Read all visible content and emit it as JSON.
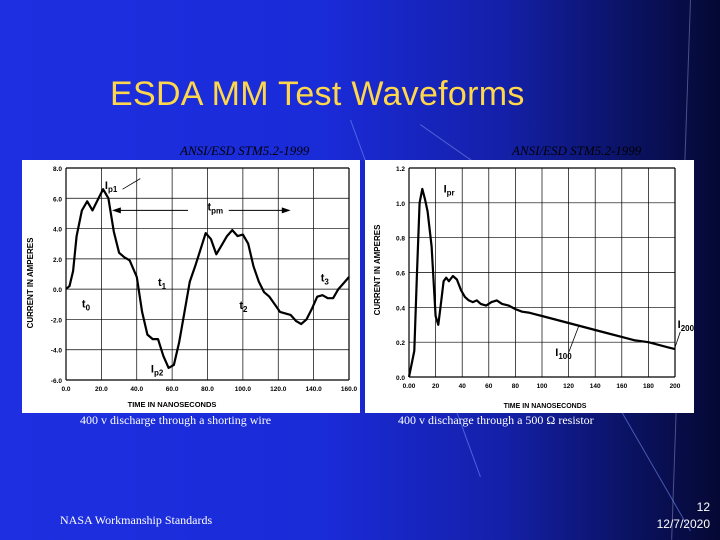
{
  "slide": {
    "title": "ESDA MM Test Waveforms",
    "footer_left": "NASA Workmanship Standards",
    "page_number": "12",
    "date": "12/7/2020"
  },
  "left_panel": {
    "standard": "ANSI/ESD STM5.2-1999",
    "caption": "400 v discharge through a shorting wire"
  },
  "right_panel": {
    "standard": "ANSI/ESD STM5.2-1999",
    "caption": "400 v discharge through a 500 Ω resistor"
  },
  "chart_data": [
    {
      "type": "line",
      "title": "400 v discharge through a shorting wire",
      "xlabel": "TIME IN NANOSECONDS",
      "ylabel": "CURRENT IN AMPERES",
      "xlim": [
        0,
        160
      ],
      "ylim": [
        -6,
        8
      ],
      "x_ticks": [
        0,
        20,
        40,
        60,
        80,
        100,
        120,
        140,
        160
      ],
      "x_tick_labels": [
        "0.0",
        "20.0",
        "40.0",
        "60.0",
        "80.0",
        "100.0",
        "120.0",
        "140.0",
        "160.0"
      ],
      "y_ticks": [
        -6,
        -4,
        -2,
        0,
        2,
        4,
        6,
        8
      ],
      "y_tick_labels": [
        "-6.0",
        "-4.0",
        "-2.0",
        "0.0",
        "2.0",
        "4.0",
        "6.0",
        "8.0"
      ],
      "grid": true,
      "series": [
        {
          "name": "current",
          "x": [
            0,
            2,
            4,
            6,
            9,
            12,
            15,
            18,
            21,
            24,
            27,
            30,
            33,
            36,
            40,
            43,
            46,
            49,
            52,
            55,
            58,
            61,
            64,
            67,
            70,
            73,
            76,
            79,
            82,
            85,
            88,
            91,
            94,
            97,
            100,
            103,
            106,
            109,
            112,
            115,
            118,
            121,
            124,
            127,
            130,
            133,
            136,
            139,
            142,
            145,
            148,
            151,
            154,
            157,
            160
          ],
          "y": [
            0,
            0.2,
            1.2,
            3.5,
            5.2,
            5.8,
            5.2,
            5.9,
            6.6,
            6.0,
            3.8,
            2.4,
            2.1,
            1.9,
            0.8,
            -1.5,
            -3.0,
            -3.3,
            -3.3,
            -4.4,
            -5.2,
            -5.0,
            -3.5,
            -1.5,
            0.5,
            1.5,
            2.6,
            3.7,
            3.3,
            2.3,
            2.9,
            3.5,
            3.9,
            3.5,
            3.6,
            3.0,
            1.5,
            0.5,
            -0.2,
            -0.5,
            -1.0,
            -1.5,
            -1.6,
            -1.7,
            -2.1,
            -2.3,
            -2.0,
            -1.3,
            -0.5,
            -0.4,
            -0.6,
            -0.6,
            0.0,
            0.4,
            0.8
          ]
        }
      ],
      "annotations": [
        {
          "text": "Ip1",
          "at": [
            22,
            6.6
          ]
        },
        {
          "text": "tpm",
          "at": [
            80,
            5.2
          ]
        },
        {
          "text": "t1",
          "at": [
            52,
            0.2
          ]
        },
        {
          "text": "t3",
          "at": [
            144,
            0.5
          ]
        },
        {
          "text": "t0",
          "at": [
            9,
            -1.2
          ]
        },
        {
          "text": "t2",
          "at": [
            98,
            -1.3
          ]
        },
        {
          "text": "Ip2",
          "at": [
            48,
            -5.5
          ]
        }
      ]
    },
    {
      "type": "line",
      "title": "400 v discharge through a 500 Ω resistor",
      "xlabel": "TIME IN NANOSECONDS",
      "ylabel": "CURRENT IN AMPERES",
      "xlim": [
        0,
        200
      ],
      "ylim": [
        0,
        1.2
      ],
      "x_ticks": [
        0,
        20,
        40,
        60,
        80,
        100,
        120,
        140,
        160,
        180,
        200
      ],
      "x_tick_labels": [
        "0.00",
        "20",
        "40",
        "60",
        "80",
        "100",
        "120",
        "140",
        "160",
        "180",
        "200"
      ],
      "y_ticks": [
        0,
        0.2,
        0.4,
        0.6,
        0.8,
        1.0,
        1.2
      ],
      "y_tick_labels": [
        "0.0",
        "0.2",
        "0.4",
        "0.6",
        "0.8",
        "1.0",
        "1.2"
      ],
      "grid": true,
      "series": [
        {
          "name": "current",
          "x": [
            0,
            4,
            6,
            8,
            10,
            12,
            14,
            17,
            20,
            22,
            24,
            26,
            28,
            30,
            33,
            36,
            39,
            42,
            45,
            48,
            51,
            54,
            58,
            62,
            66,
            70,
            75,
            80,
            85,
            90,
            95,
            100,
            110,
            120,
            130,
            140,
            150,
            160,
            170,
            180,
            190,
            195,
            200
          ],
          "y": [
            0,
            0.15,
            0.6,
            1.0,
            1.08,
            1.02,
            0.95,
            0.75,
            0.35,
            0.3,
            0.42,
            0.55,
            0.57,
            0.55,
            0.58,
            0.56,
            0.5,
            0.46,
            0.44,
            0.43,
            0.44,
            0.42,
            0.41,
            0.43,
            0.44,
            0.42,
            0.41,
            0.39,
            0.375,
            0.37,
            0.36,
            0.35,
            0.33,
            0.31,
            0.29,
            0.27,
            0.25,
            0.23,
            0.21,
            0.2,
            0.18,
            0.17,
            0.16
          ]
        }
      ],
      "annotations": [
        {
          "text": "Ipr",
          "at": [
            26,
            1.06
          ]
        },
        {
          "text": "I100",
          "at": [
            110,
            0.12
          ]
        },
        {
          "text": "I200",
          "at": [
            202,
            0.28
          ]
        }
      ]
    }
  ]
}
